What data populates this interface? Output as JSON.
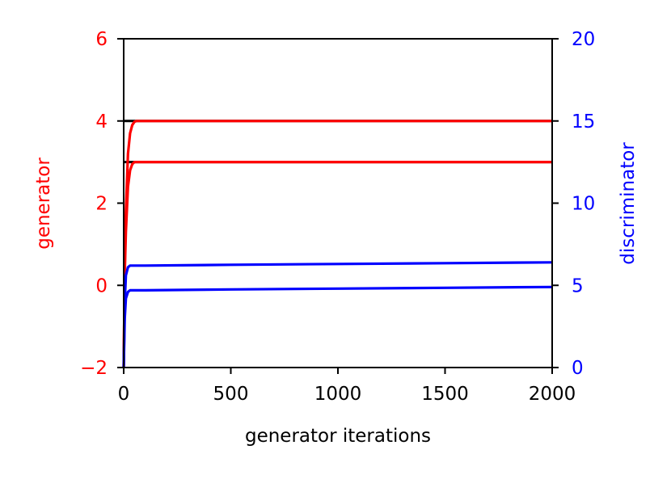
{
  "chart_data": {
    "type": "line",
    "xlabel": "generator iterations",
    "ylabel_left": "generator",
    "ylabel_right": "discriminator",
    "xlim": [
      0,
      2000
    ],
    "ylim_left": [
      -2,
      6
    ],
    "ylim_right": [
      0,
      20
    ],
    "xticks": [
      0,
      500,
      1000,
      1500,
      2000
    ],
    "yticks_left": [
      -2,
      0,
      2,
      4,
      6
    ],
    "yticks_right": [
      0,
      5,
      10,
      15,
      20
    ],
    "grid": false,
    "colors": {
      "generator_axis": "#ff0000",
      "discriminator_axis": "#0000ff",
      "target_lines": "#000000"
    },
    "reference_lines_left": [
      4,
      3
    ],
    "series": [
      {
        "axis": "left",
        "color": "#ff0000",
        "x": [
          0,
          5,
          10,
          20,
          30,
          40,
          50,
          60,
          80,
          100,
          2000
        ],
        "y": [
          -2.0,
          0.4,
          1.8,
          3.2,
          3.7,
          3.9,
          3.98,
          4.0,
          4.0,
          4.0,
          4.0
        ]
      },
      {
        "axis": "left",
        "color": "#ff0000",
        "x": [
          0,
          5,
          10,
          20,
          30,
          40,
          50,
          60,
          80,
          100,
          2000
        ],
        "y": [
          -2.0,
          0.3,
          1.3,
          2.4,
          2.8,
          2.95,
          3.0,
          3.0,
          3.0,
          3.0,
          3.0
        ]
      },
      {
        "axis": "right",
        "color": "#0000ff",
        "x": [
          0,
          5,
          10,
          20,
          30,
          50,
          100,
          500,
          1000,
          1500,
          2000
        ],
        "y": [
          0.0,
          4.0,
          5.6,
          6.1,
          6.2,
          6.2,
          6.2,
          6.25,
          6.3,
          6.35,
          6.4
        ]
      },
      {
        "axis": "right",
        "color": "#0000ff",
        "x": [
          0,
          5,
          10,
          20,
          30,
          50,
          100,
          500,
          1000,
          1500,
          2000
        ],
        "y": [
          0.0,
          3.0,
          4.2,
          4.6,
          4.7,
          4.7,
          4.7,
          4.75,
          4.8,
          4.85,
          4.9
        ]
      }
    ]
  }
}
